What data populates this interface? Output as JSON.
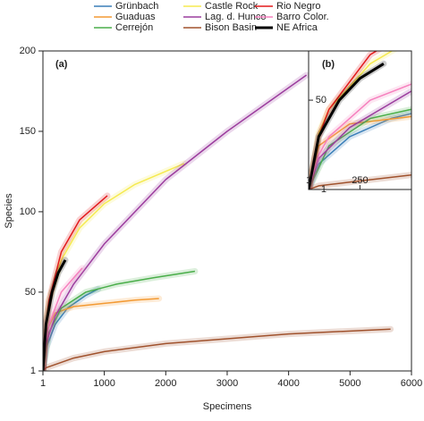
{
  "chart_data": [
    {
      "type": "line",
      "title": "(a)",
      "x_label": "Specimens",
      "y_label": "Species",
      "xlim": [
        1,
        6000
      ],
      "ylim": [
        1,
        200
      ],
      "xticks": [
        1,
        1000,
        2000,
        3000,
        4000,
        5000,
        6000
      ],
      "yticks": [
        1,
        50,
        100,
        150,
        200
      ],
      "series": [
        {
          "name": "Grünbach",
          "color": "#3a7fb8",
          "x": [
            1,
            50,
            200,
            400,
            700,
            900
          ],
          "values": [
            1,
            15,
            30,
            40,
            48,
            52
          ]
        },
        {
          "name": "Guaduas",
          "color": "#f39a33",
          "x": [
            1,
            50,
            200,
            500,
            1000,
            1500,
            1890
          ],
          "values": [
            1,
            25,
            37,
            41,
            43,
            45,
            46
          ]
        },
        {
          "name": "Cerrejón",
          "color": "#4aae4a",
          "x": [
            1,
            100,
            300,
            700,
            1200,
            1800,
            2475
          ],
          "values": [
            1,
            25,
            40,
            50,
            55,
            59,
            63
          ]
        },
        {
          "name": "Castle Rock",
          "color": "#f5ea50",
          "x": [
            1,
            50,
            100,
            300,
            600,
            1000,
            1500,
            2300
          ],
          "values": [
            1,
            32,
            45,
            70,
            90,
            105,
            117,
            130
          ]
        },
        {
          "name": "Lag. d. Hunco",
          "color": "#9c3d9e",
          "x": [
            1,
            50,
            200,
            500,
            1000,
            2000,
            3000,
            4290
          ],
          "values": [
            1,
            18,
            35,
            55,
            80,
            120,
            150,
            185
          ]
        },
        {
          "name": "Bison Basin",
          "color": "#a0522d",
          "x": [
            1,
            50,
            200,
            500,
            1000,
            2000,
            3000,
            4000,
            5660
          ],
          "values": [
            1,
            3,
            5,
            9,
            13,
            18,
            21,
            24,
            27
          ]
        },
        {
          "name": "Rio Negro",
          "color": "#e31a1c",
          "x": [
            1,
            50,
            100,
            300,
            600,
            1050
          ],
          "values": [
            1,
            30,
            45,
            75,
            95,
            110
          ]
        },
        {
          "name": "Barro Color.",
          "color": "#f680be",
          "x": [
            1,
            50,
            100,
            300,
            640
          ],
          "values": [
            1,
            20,
            30,
            50,
            65
          ]
        },
        {
          "name": "NE Africa",
          "color": "#000000",
          "x": [
            1,
            50,
            150,
            250,
            365
          ],
          "values": [
            1,
            30,
            50,
            62,
            70
          ]
        }
      ]
    },
    {
      "type": "line",
      "title": "(b)",
      "xlim": [
        1,
        500
      ],
      "ylim": [
        1,
        77
      ],
      "xticks": [
        1,
        250
      ],
      "yticks": [
        1,
        50
      ]
    }
  ]
}
